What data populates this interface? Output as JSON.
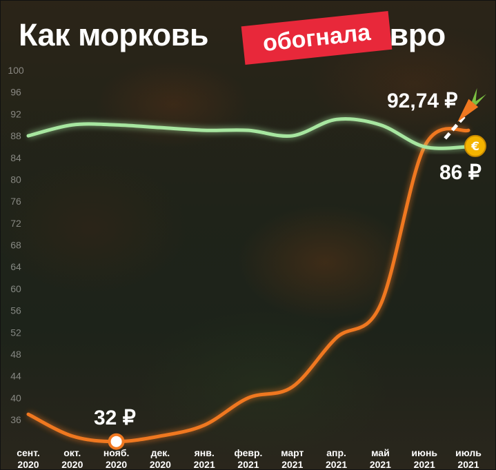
{
  "title": {
    "part1": "Как морковь",
    "part2": "евро"
  },
  "badge": "обогнала",
  "annotations": {
    "carrot_high": "92,74 ₽",
    "euro_value": "86 ₽",
    "carrot_low": "32 ₽"
  },
  "colors": {
    "carrot": "#f07820",
    "euro": "#a7e6a0",
    "badge": "#e8283a",
    "coin": "#f4b400"
  },
  "icons": {
    "euro_marker": "euro-coin-icon",
    "carrot_marker": "carrot-icon",
    "low_marker": "circle-marker-icon"
  },
  "chart_data": {
    "type": "line",
    "categories": [
      "сент. 2020",
      "окт. 2020",
      "нояб. 2020",
      "дек. 2020",
      "янв. 2021",
      "февр. 2021",
      "март 2021",
      "апр. 2021",
      "май 2021",
      "июнь 2021",
      "июль 2021"
    ],
    "ylim": [
      34,
      101
    ],
    "yticks": [
      100,
      96,
      92,
      88,
      84,
      80,
      76,
      72,
      68,
      64,
      60,
      56,
      52,
      48,
      44,
      40,
      36
    ],
    "series": [
      {
        "key": "carrot",
        "values": [
          37,
          33,
          32,
          33,
          35,
          40,
          42,
          51,
          57,
          86,
          89
        ]
      },
      {
        "key": "euro",
        "values": [
          88,
          90,
          90,
          89.5,
          89,
          89,
          88,
          91,
          90,
          86,
          86
        ]
      }
    ]
  }
}
